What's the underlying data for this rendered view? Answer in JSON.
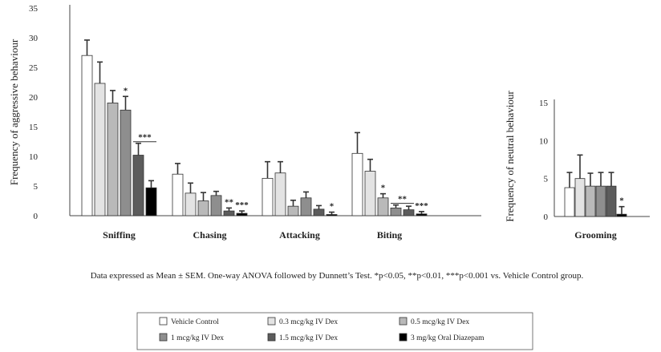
{
  "chart_data": [
    {
      "type": "bar",
      "ylabel": "Frequency of aggressive behaviour",
      "ylim": [
        0,
        35
      ],
      "yticks": [
        0,
        5,
        10,
        15,
        20,
        25,
        30,
        35
      ],
      "categories": [
        "Sniffing",
        "Chasing",
        "Attacking",
        "Biting"
      ],
      "series": [
        {
          "name": "Vehicle Control",
          "values": [
            27,
            7,
            6.3,
            10.5
          ],
          "errors": [
            2.6,
            1.8,
            2.8,
            3.5
          ]
        },
        {
          "name": "0.3 mcg/kg IV Dex",
          "values": [
            22.3,
            3.8,
            7.2,
            7.5
          ],
          "errors": [
            3.6,
            1.7,
            1.9,
            2.0
          ]
        },
        {
          "name": "0.5 mcg/kg IV Dex",
          "values": [
            19,
            2.5,
            1.6,
            3
          ],
          "errors": [
            2.1,
            1.4,
            1.0,
            0.7
          ]
        },
        {
          "name": "1 mcg/kg IV Dex",
          "values": [
            17.8,
            3.4,
            3,
            1.3
          ],
          "errors": [
            2.3,
            0.7,
            1.0,
            0.5
          ]
        },
        {
          "name": "1.5 mcg/kg IV Dex",
          "values": [
            10.2,
            0.8,
            1.1,
            1.0
          ],
          "errors": [
            2.0,
            0.5,
            0.6,
            0.6
          ]
        },
        {
          "name": "3 mg/kg Oral Diazepam",
          "values": [
            4.7,
            0.4,
            0.2,
            0.3
          ],
          "errors": [
            1.2,
            0.4,
            0.4,
            0.4
          ]
        }
      ],
      "significance": [
        {
          "category": "Sniffing",
          "series": [
            "1 mcg/kg IV Dex"
          ],
          "label": "*"
        },
        {
          "category": "Sniffing",
          "series": [
            "1.5 mcg/kg IV Dex",
            "3 mg/kg Oral Diazepam"
          ],
          "label": "***"
        },
        {
          "category": "Chasing",
          "series": [
            "1.5 mcg/kg IV Dex"
          ],
          "label": "**"
        },
        {
          "category": "Chasing",
          "series": [
            "3 mg/kg Oral Diazepam"
          ],
          "label": "***"
        },
        {
          "category": "Attacking",
          "series": [
            "3 mg/kg Oral Diazepam"
          ],
          "label": "*"
        },
        {
          "category": "Biting",
          "series": [
            "0.5 mcg/kg IV Dex"
          ],
          "label": "*"
        },
        {
          "category": "Biting",
          "series": [
            "1 mcg/kg IV Dex",
            "1.5 mcg/kg IV Dex"
          ],
          "label": "**"
        },
        {
          "category": "Biting",
          "series": [
            "3 mg/kg Oral Diazepam"
          ],
          "label": "***"
        }
      ]
    },
    {
      "type": "bar",
      "ylabel": "Frequency of neutral behaviour",
      "ylim": [
        0,
        15
      ],
      "yticks": [
        0,
        5,
        10,
        15
      ],
      "categories": [
        "Grooming"
      ],
      "series": [
        {
          "name": "Vehicle Control",
          "values": [
            3.8
          ],
          "errors": [
            2.0
          ]
        },
        {
          "name": "0.3 mcg/kg IV Dex",
          "values": [
            5
          ],
          "errors": [
            3.1
          ]
        },
        {
          "name": "0.5 mcg/kg IV Dex",
          "values": [
            4
          ],
          "errors": [
            1.7
          ]
        },
        {
          "name": "1 mcg/kg IV Dex",
          "values": [
            4
          ],
          "errors": [
            1.8
          ]
        },
        {
          "name": "1.5 mcg/kg IV Dex",
          "values": [
            4
          ],
          "errors": [
            1.8
          ]
        },
        {
          "name": "3 mg/kg Oral Diazepam",
          "values": [
            0.3
          ],
          "errors": [
            1.0
          ]
        }
      ],
      "significance": [
        {
          "category": "Grooming",
          "series": [
            "3 mg/kg Oral Diazepam"
          ],
          "label": "*"
        }
      ]
    }
  ],
  "colors": {
    "Vehicle Control": "#ffffff",
    "0.3 mcg/kg IV Dex": "#e3e3e3",
    "0.5 mcg/kg IV Dex": "#b9b9b9",
    "1 mcg/kg IV Dex": "#8e8e8e",
    "1.5 mcg/kg IV Dex": "#5c5c5c",
    "3 mg/kg Oral Diazepam": "#000000"
  },
  "note": "Data expressed as Mean ± SEM. One-way ANOVA followed by Dunnett’s Test. *p<0.05, **p<0.01, ***p<0.001 vs. Vehicle Control group.",
  "legend": {
    "placement": "bottom-center",
    "items": [
      "Vehicle Control",
      "0.3 mcg/kg IV Dex",
      "0.5 mcg/kg IV Dex",
      "1 mcg/kg IV Dex",
      "1.5 mcg/kg IV Dex",
      "3 mg/kg Oral Diazepam"
    ]
  }
}
